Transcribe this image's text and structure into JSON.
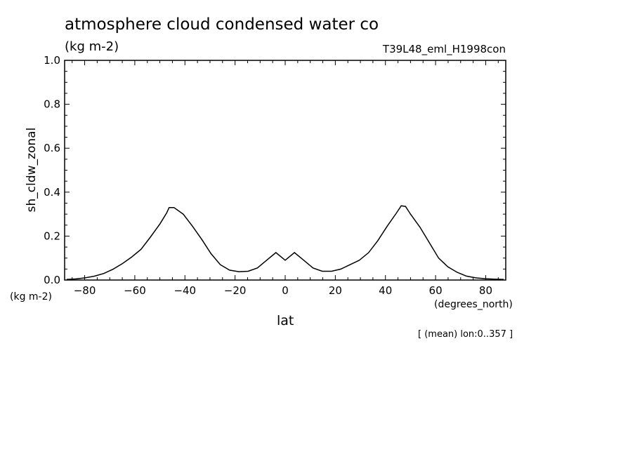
{
  "chart_data": {
    "type": "line",
    "title": "atmosphere cloud condensed water co",
    "units_label": "(kg m-2)",
    "run_label": "T39L48_eml_H1998con",
    "ylabel": "sh_cldw_zonal",
    "y_units_label": "(kg m-2)",
    "xlabel": "lat",
    "x_units_label": "(degrees_north)",
    "footnote": "[ (mean) lon:0..357 ]",
    "xlim": [
      -88,
      88
    ],
    "ylim": [
      0.0,
      1.0
    ],
    "x_ticks": [
      -80,
      -60,
      -40,
      -20,
      0,
      20,
      40,
      60,
      80
    ],
    "x_tick_labels": [
      "-80",
      "-60",
      "-40",
      "-20",
      "0",
      "20",
      "40",
      "60",
      "80"
    ],
    "y_ticks": [
      0.0,
      0.2,
      0.4,
      0.6,
      0.8,
      1.0
    ],
    "y_tick_labels": [
      "0.0",
      "0.2",
      "0.4",
      "0.6",
      "0.8",
      "1.0"
    ],
    "grid": false,
    "series": [
      {
        "name": "sh_cldw_zonal",
        "x": [
          -87.2,
          -83.5,
          -79.8,
          -76.0,
          -72.3,
          -68.6,
          -64.9,
          -61.2,
          -57.5,
          -53.8,
          -50.0,
          -47.3,
          -46.3,
          -44.4,
          -40.7,
          -37.0,
          -33.3,
          -29.6,
          -25.9,
          -22.2,
          -18.5,
          -14.8,
          -11.1,
          -7.4,
          -3.7,
          0.0,
          3.7,
          7.4,
          11.1,
          14.8,
          18.5,
          22.2,
          25.9,
          29.6,
          33.3,
          37.0,
          40.7,
          44.4,
          46.3,
          48.0,
          50.0,
          53.8,
          57.5,
          61.2,
          64.9,
          68.6,
          72.3,
          76.0,
          79.8,
          83.5,
          87.2
        ],
        "values": [
          0.003,
          0.005,
          0.01,
          0.018,
          0.03,
          0.05,
          0.075,
          0.105,
          0.14,
          0.195,
          0.255,
          0.305,
          0.33,
          0.33,
          0.3,
          0.245,
          0.185,
          0.12,
          0.07,
          0.045,
          0.038,
          0.04,
          0.055,
          0.09,
          0.125,
          0.09,
          0.125,
          0.09,
          0.055,
          0.04,
          0.04,
          0.05,
          0.07,
          0.09,
          0.125,
          0.18,
          0.245,
          0.305,
          0.338,
          0.335,
          0.3,
          0.24,
          0.17,
          0.1,
          0.06,
          0.035,
          0.018,
          0.01,
          0.006,
          0.004,
          0.003
        ]
      }
    ]
  }
}
